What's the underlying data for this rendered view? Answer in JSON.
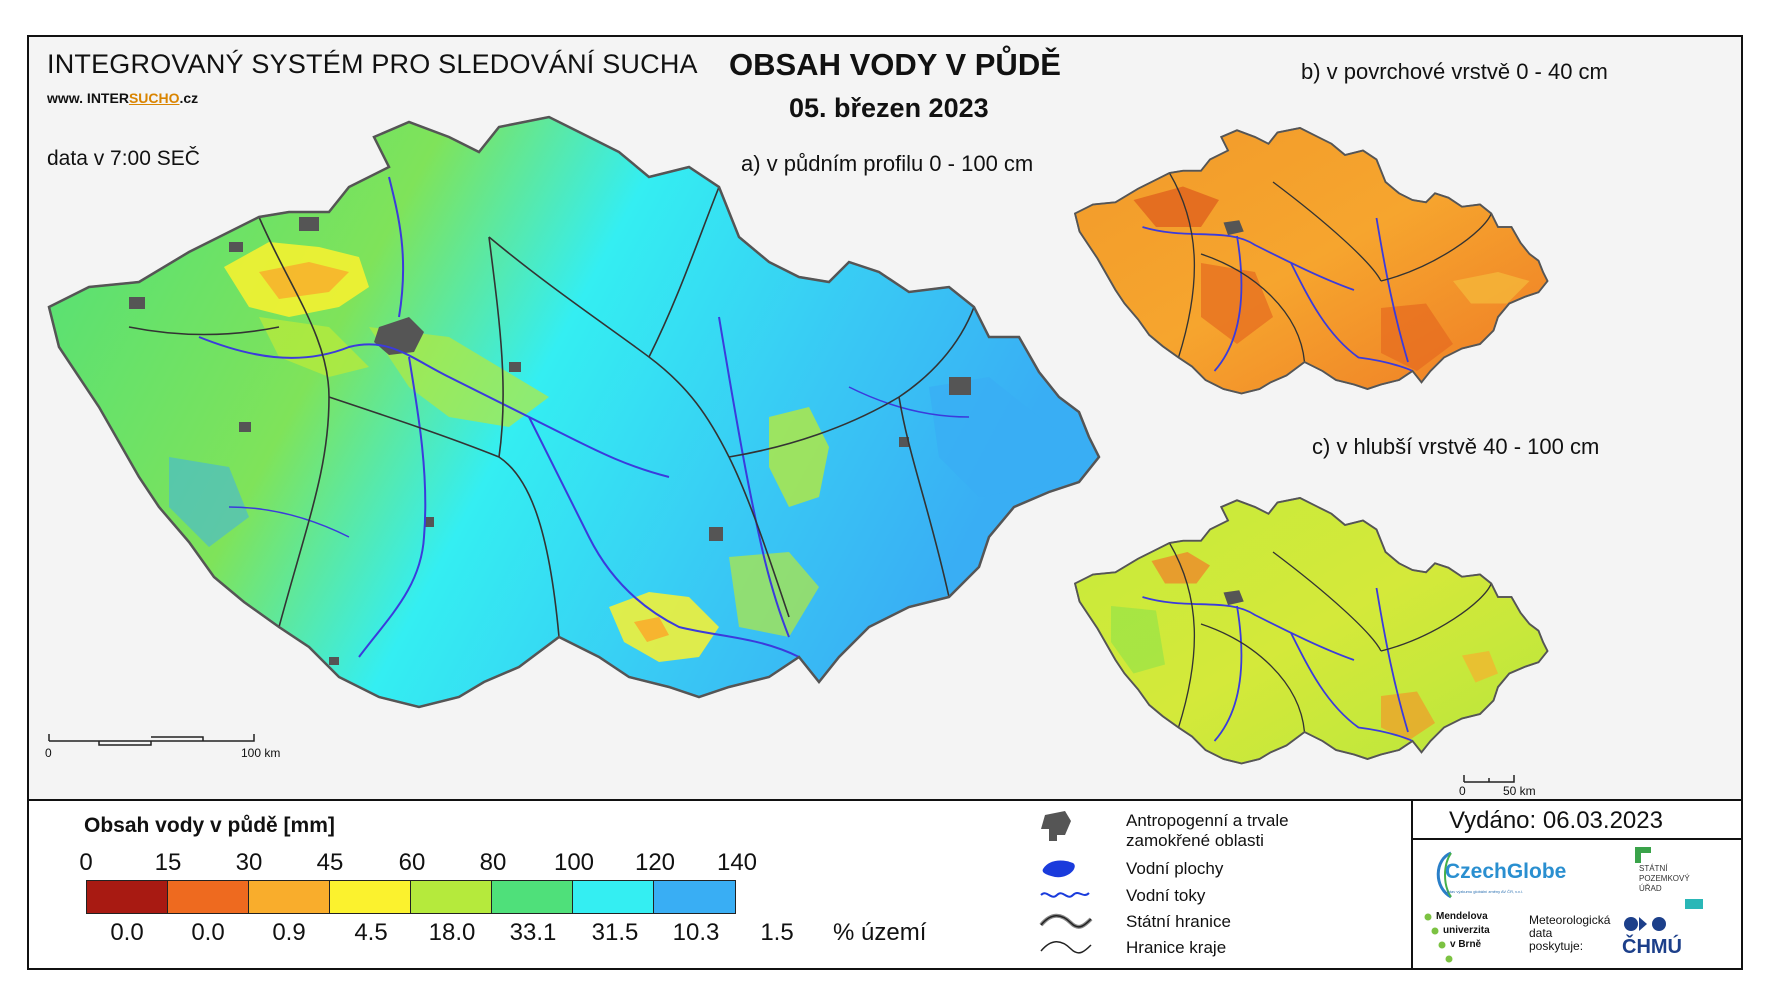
{
  "header": {
    "system_title": "INTEGROVANÝ SYSTÉM PRO SLEDOVÁNÍ SUCHA",
    "website_prefix": "www. INTER",
    "website_highlight": "SUCHO",
    "website_suffix": ".cz",
    "data_time": "data v 7:00 SEČ",
    "main_title": "OBSAH VODY V PŮDĚ",
    "date": "05. březen 2023"
  },
  "maps": {
    "a_label": "a) v půdním profilu 0 - 100 cm",
    "b_label": "b) v povrchové vrstvě 0 - 40 cm",
    "c_label": "c) v hlubší vrstvě 40 - 100 cm",
    "scale_main": {
      "start": "0",
      "end": "100 km"
    },
    "scale_small": {
      "start": "0",
      "end": "50 km"
    }
  },
  "legend": {
    "title": "Obsah vody v půdě  [mm]",
    "thresholds": [
      "0",
      "15",
      "30",
      "45",
      "60",
      "80",
      "100",
      "120",
      "140"
    ],
    "colors": [
      "#a81a12",
      "#ee6a1f",
      "#f9ad2c",
      "#fbf22e",
      "#b5ea3c",
      "#4fe07a",
      "#34eef2",
      "#39aef4",
      "#1a63d8"
    ],
    "percentages": [
      "0.0",
      "0.0",
      "0.9",
      "4.5",
      "18.0",
      "33.1",
      "31.5",
      "10.3",
      "1.5"
    ],
    "percent_label": "% území"
  },
  "symbols": {
    "anthropogenic": "Antropogenní a trvale zamokřené oblasti",
    "water_bodies": "Vodní plochy",
    "rivers": "Vodní toky",
    "state_border": "Státní hranice",
    "region_border": "Hranice kraje"
  },
  "issued": "Vydáno: 06.03.2023",
  "logos": {
    "czechglobe": "CzechGlobe",
    "czechglobe_sub": "Ústav výzkumu globální změny AV ČR, v.v.i.",
    "spu_line1": "STÁTNÍ",
    "spu_line2": "POZEMKOVÝ",
    "spu_line3": "ÚŘAD",
    "mendel_line1": "Mendelova",
    "mendel_line2": "univerzita",
    "mendel_line3": "v Brně",
    "meteo_line1": "Meteorologická",
    "meteo_line2": "data",
    "meteo_line3": "poskytuje:",
    "chmu": "ČHMÚ"
  }
}
